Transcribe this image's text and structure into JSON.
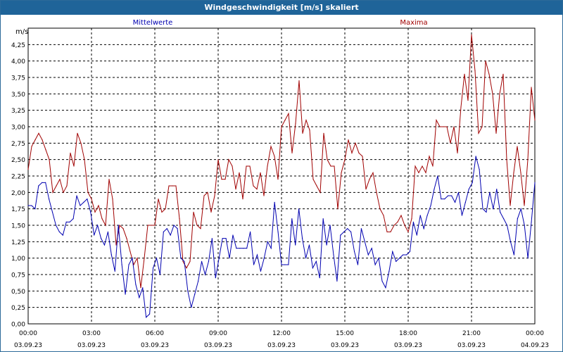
{
  "title": "Windgeschwindigkeit [m/s] skaliert",
  "colors": {
    "titlebar": "#1f6499",
    "mean": "#0000b0",
    "max": "#a00000",
    "grid": "#000000"
  },
  "chart_data": {
    "type": "line",
    "unit_label": "m/s",
    "ylim": [
      0,
      4.5
    ],
    "y_ticks": [
      "0,00",
      "0,25",
      "0,50",
      "0,75",
      "1,00",
      "1,25",
      "1,50",
      "1,75",
      "2,00",
      "2,25",
      "2,50",
      "2,75",
      "3,00",
      "3,25",
      "3,50",
      "3,75",
      "4,00",
      "4,25"
    ],
    "x_ticks": [
      {
        "time": "00:00",
        "date": "03.09.23"
      },
      {
        "time": "03:00",
        "date": "03.09.23"
      },
      {
        "time": "06:00",
        "date": "03.09.23"
      },
      {
        "time": "09:00",
        "date": "03.09.23"
      },
      {
        "time": "12:00",
        "date": "03.09.23"
      },
      {
        "time": "15:00",
        "date": "03.09.23"
      },
      {
        "time": "18:00",
        "date": "03.09.23"
      },
      {
        "time": "21:00",
        "date": "03.09.23"
      },
      {
        "time": "00:00",
        "date": "04.09.23"
      }
    ],
    "grid": true,
    "series": [
      {
        "name": "Mittelwerte",
        "color": "#0000b0",
        "values": [
          1.8,
          1.8,
          1.75,
          2.1,
          2.15,
          2.15,
          1.9,
          1.7,
          1.5,
          1.4,
          1.35,
          1.55,
          1.55,
          1.6,
          1.95,
          1.8,
          1.85,
          1.9,
          1.7,
          1.35,
          1.5,
          1.3,
          1.2,
          1.4,
          1.05,
          0.8,
          1.5,
          0.9,
          0.45,
          0.9,
          1.0,
          0.6,
          0.4,
          0.55,
          0.1,
          0.15,
          0.85,
          1.0,
          0.75,
          1.4,
          1.45,
          1.35,
          1.5,
          1.45,
          1.0,
          0.95,
          0.5,
          0.25,
          0.45,
          0.65,
          0.95,
          0.75,
          0.95,
          1.3,
          0.7,
          1.0,
          1.3,
          1.3,
          1.0,
          1.35,
          1.15,
          1.15,
          1.15,
          1.15,
          1.4,
          0.9,
          1.05,
          0.8,
          1.0,
          1.25,
          1.15,
          1.85,
          1.4,
          0.9,
          0.9,
          0.9,
          1.6,
          1.2,
          1.75,
          1.3,
          1.0,
          1.2,
          0.85,
          0.95,
          0.7,
          1.6,
          1.2,
          1.5,
          1.05,
          0.65,
          1.35,
          1.4,
          1.45,
          1.4,
          1.1,
          0.9,
          1.45,
          1.25,
          1.05,
          1.15,
          0.9,
          1.0,
          0.65,
          0.55,
          0.8,
          1.1,
          0.95,
          1.0,
          1.05,
          1.05,
          1.1,
          1.55,
          1.35,
          1.65,
          1.45,
          1.65,
          1.8,
          2.05,
          2.25,
          1.9,
          1.9,
          1.95,
          1.95,
          1.85,
          2.0,
          1.65,
          1.85,
          2.05,
          2.15,
          2.55,
          2.35,
          1.75,
          1.7,
          2.0,
          1.75,
          2.05,
          1.7,
          1.6,
          1.5,
          1.25,
          1.05,
          1.6,
          1.75,
          1.5,
          1.0,
          1.55,
          2.15
        ]
      },
      {
        "name": "Maxima",
        "color": "#a00000",
        "values": [
          2.35,
          2.7,
          2.8,
          2.9,
          2.8,
          2.65,
          2.5,
          2.0,
          2.1,
          2.2,
          2.0,
          2.1,
          2.6,
          2.4,
          2.9,
          2.75,
          2.5,
          2.0,
          1.9,
          1.7,
          1.8,
          1.6,
          1.5,
          2.2,
          1.9,
          1.2,
          1.5,
          1.45,
          1.3,
          1.1,
          0.9,
          1.0,
          0.55,
          1.0,
          1.5,
          1.5,
          1.5,
          1.9,
          1.7,
          1.75,
          2.1,
          2.1,
          2.1,
          1.6,
          0.95,
          0.85,
          0.95,
          1.7,
          1.5,
          1.45,
          1.95,
          2.0,
          1.7,
          1.95,
          2.5,
          2.2,
          2.2,
          2.5,
          2.4,
          2.05,
          2.3,
          1.9,
          2.4,
          2.4,
          2.1,
          2.05,
          2.3,
          1.95,
          2.4,
          2.7,
          2.55,
          2.2,
          3.0,
          3.1,
          3.2,
          2.6,
          3.05,
          3.7,
          2.9,
          3.1,
          2.95,
          2.2,
          2.1,
          2.0,
          2.9,
          2.5,
          2.4,
          2.4,
          1.75,
          2.3,
          2.5,
          2.8,
          2.6,
          2.75,
          2.6,
          2.55,
          2.05,
          2.2,
          2.3,
          2.0,
          1.75,
          1.65,
          1.4,
          1.4,
          1.5,
          1.55,
          1.65,
          1.5,
          1.4,
          1.6,
          2.4,
          2.3,
          2.4,
          2.3,
          2.55,
          2.4,
          3.1,
          3.0,
          3.0,
          3.0,
          2.75,
          3.0,
          2.6,
          3.3,
          3.8,
          3.4,
          4.4,
          3.85,
          2.9,
          3.0,
          4.0,
          3.8,
          3.5,
          2.9,
          3.5,
          3.8,
          2.5,
          1.8,
          2.3,
          2.7,
          2.3,
          1.8,
          2.5,
          3.6,
          3.1
        ]
      }
    ]
  }
}
